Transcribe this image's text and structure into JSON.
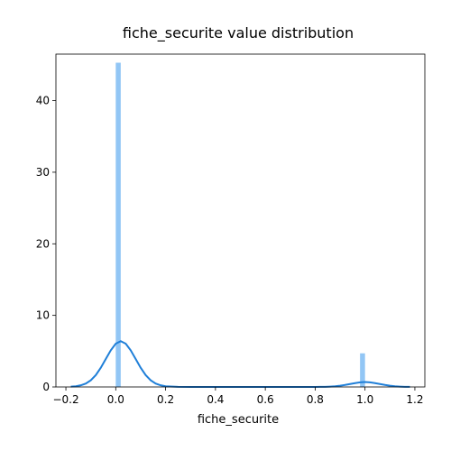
{
  "chart_data": {
    "type": "bar",
    "title": "fiche_securite value distribution",
    "xlabel": "fiche_securite",
    "ylabel": "",
    "xlim": [
      -0.24,
      1.24
    ],
    "ylim": [
      0,
      46.5
    ],
    "x_ticks": [
      -0.2,
      0.0,
      0.2,
      0.4,
      0.6,
      0.8,
      1.0,
      1.2
    ],
    "x_tick_labels": [
      "−0.2",
      "0.0",
      "0.2",
      "0.4",
      "0.6",
      "0.8",
      "1.0",
      "1.2"
    ],
    "y_ticks": [
      0,
      10,
      20,
      30,
      40
    ],
    "y_tick_labels": [
      "0",
      "10",
      "20",
      "30",
      "40"
    ],
    "grid": false,
    "histogram": {
      "bins": [
        {
          "x0": 0.0,
          "x1": 0.02,
          "density": 45.3
        },
        {
          "x0": 0.98,
          "x1": 1.0,
          "density": 4.7
        }
      ]
    },
    "kde": {
      "x": [
        -0.18,
        -0.16,
        -0.14,
        -0.12,
        -0.1,
        -0.08,
        -0.06,
        -0.04,
        -0.02,
        0.0,
        0.02,
        0.04,
        0.06,
        0.08,
        0.1,
        0.12,
        0.14,
        0.16,
        0.18,
        0.2,
        0.25,
        0.3,
        0.4,
        0.5,
        0.6,
        0.7,
        0.75,
        0.8,
        0.82,
        0.84,
        0.86,
        0.88,
        0.9,
        0.92,
        0.94,
        0.96,
        0.98,
        1.0,
        1.02,
        1.04,
        1.06,
        1.08,
        1.1,
        1.12,
        1.14,
        1.16,
        1.18
      ],
      "y": [
        0.04,
        0.1,
        0.23,
        0.48,
        0.94,
        1.66,
        2.68,
        3.91,
        5.12,
        6.05,
        6.4,
        6.05,
        5.12,
        3.91,
        2.68,
        1.66,
        0.94,
        0.48,
        0.23,
        0.1,
        0.02,
        0.0,
        0.0,
        0.0,
        0.0,
        0.0,
        0.0,
        0.0,
        0.01,
        0.02,
        0.05,
        0.09,
        0.17,
        0.28,
        0.41,
        0.54,
        0.65,
        0.69,
        0.65,
        0.54,
        0.41,
        0.28,
        0.17,
        0.09,
        0.05,
        0.02,
        0.01
      ]
    },
    "colors": {
      "histogram": "#92c6f5",
      "kde": "#1f7fd8",
      "axes": "#000000"
    }
  }
}
